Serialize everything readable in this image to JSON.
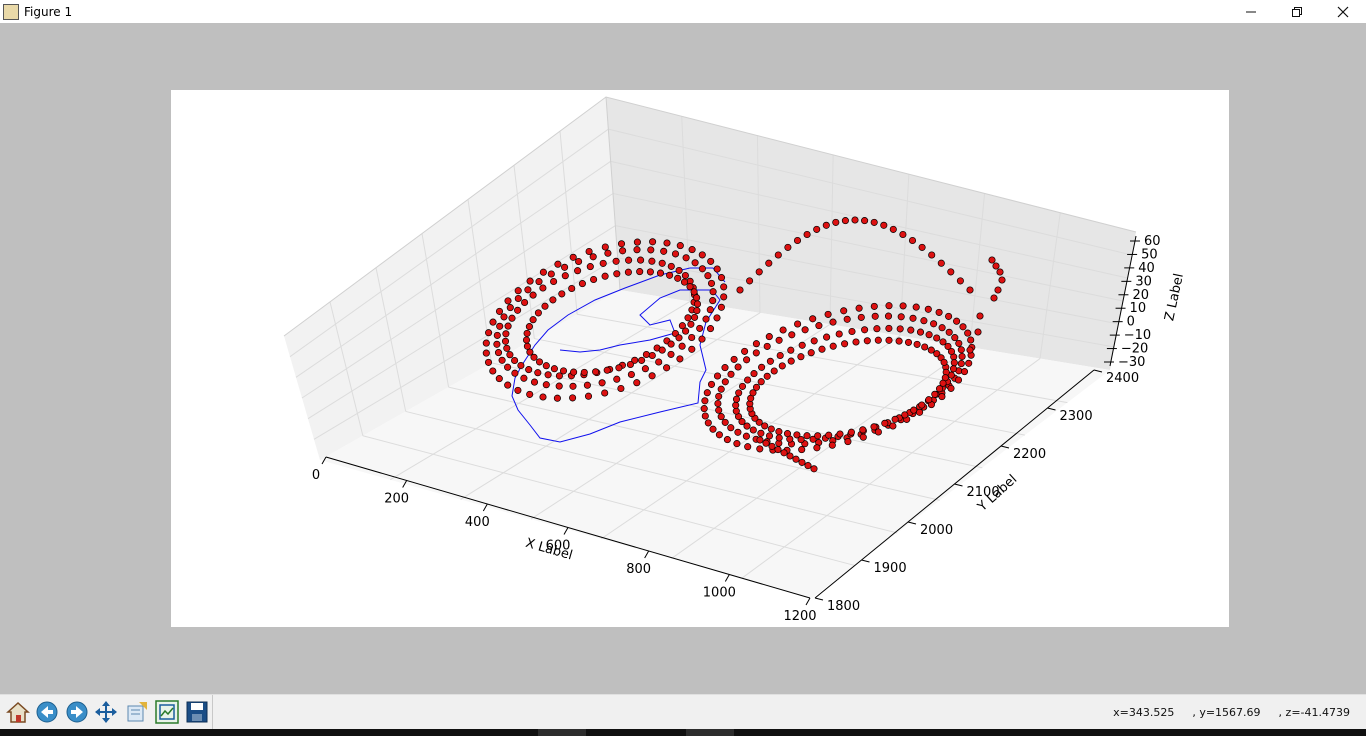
{
  "window": {
    "title": "Figure 1",
    "minimize_icon": "minimize-icon",
    "maximize_icon": "restore-icon",
    "close_icon": "close-icon"
  },
  "toolbar": {
    "buttons": [
      {
        "name": "home",
        "icon": "home-icon"
      },
      {
        "name": "back",
        "icon": "back-arrow-icon"
      },
      {
        "name": "forward",
        "icon": "forward-arrow-icon"
      },
      {
        "name": "pan",
        "icon": "pan-icon"
      },
      {
        "name": "configure-subplots",
        "icon": "subplots-icon"
      },
      {
        "name": "zoom",
        "icon": "zoom-rect-icon"
      },
      {
        "name": "save",
        "icon": "save-icon"
      }
    ]
  },
  "coordinates": {
    "x": "x=343.525",
    "y": ", y=1567.69",
    "z": ", z=-41.4739"
  },
  "colors": {
    "points": "#dd1111",
    "line": "#1010ee",
    "background": "#bfbfbf"
  },
  "chart_data": {
    "type": "scatter",
    "projection": "3d",
    "xlabel": "X Label",
    "ylabel": "Y Label",
    "zlabel": "Z Label",
    "xticks": [
      "0",
      "200",
      "400",
      "600",
      "800",
      "1000",
      "1200"
    ],
    "yticks": [
      "1800",
      "1900",
      "2000",
      "2100",
      "2200",
      "2300",
      "2400"
    ],
    "zticks": [
      "60",
      "50",
      "40",
      "30",
      "20",
      "10",
      "0",
      "−10",
      "−20",
      "−30"
    ],
    "xlim": [
      0,
      1200
    ],
    "ylim": [
      1800,
      2400
    ],
    "zlim": [
      -30,
      60
    ],
    "grid": true,
    "series": [
      {
        "kind": "scatter-loops",
        "description_visible": false
      },
      {
        "kind": "line"
      }
    ]
  }
}
